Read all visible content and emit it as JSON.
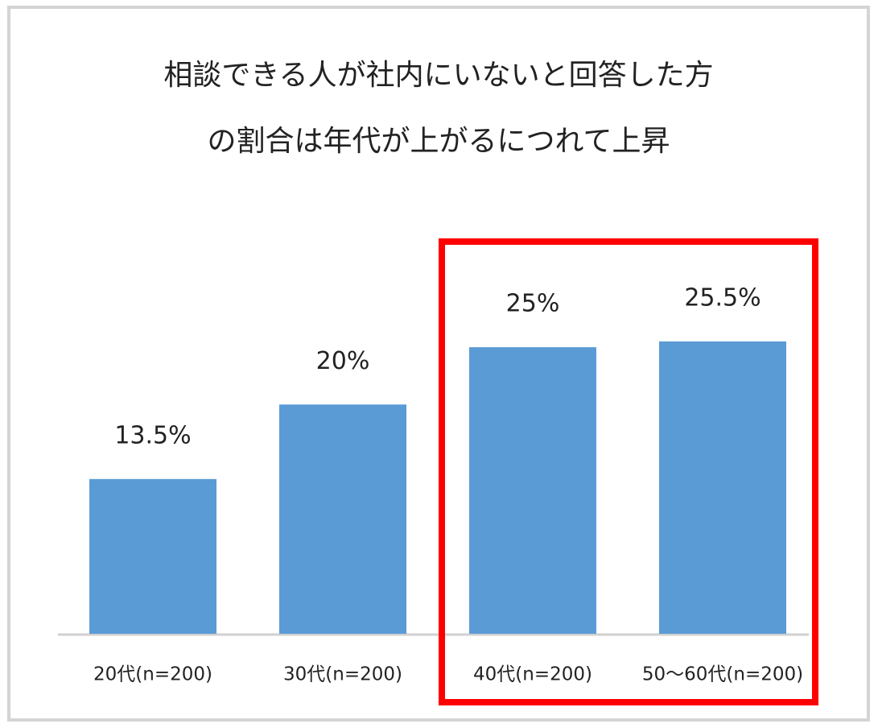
{
  "chart_data": {
    "type": "bar",
    "title": [
      "相談できる人が社内にいないと回答した方",
      "の割合は年代が上がるにつれて上昇"
    ],
    "categories": [
      "20代(n=200)",
      "30代(n=200)",
      "40代(n=200)",
      "50〜60代(n=200)"
    ],
    "values": [
      13.5,
      20,
      25,
      25.5
    ],
    "value_labels": [
      "13.5%",
      "20%",
      "25%",
      "25.5%"
    ],
    "color": "#5b9bd5"
  }
}
